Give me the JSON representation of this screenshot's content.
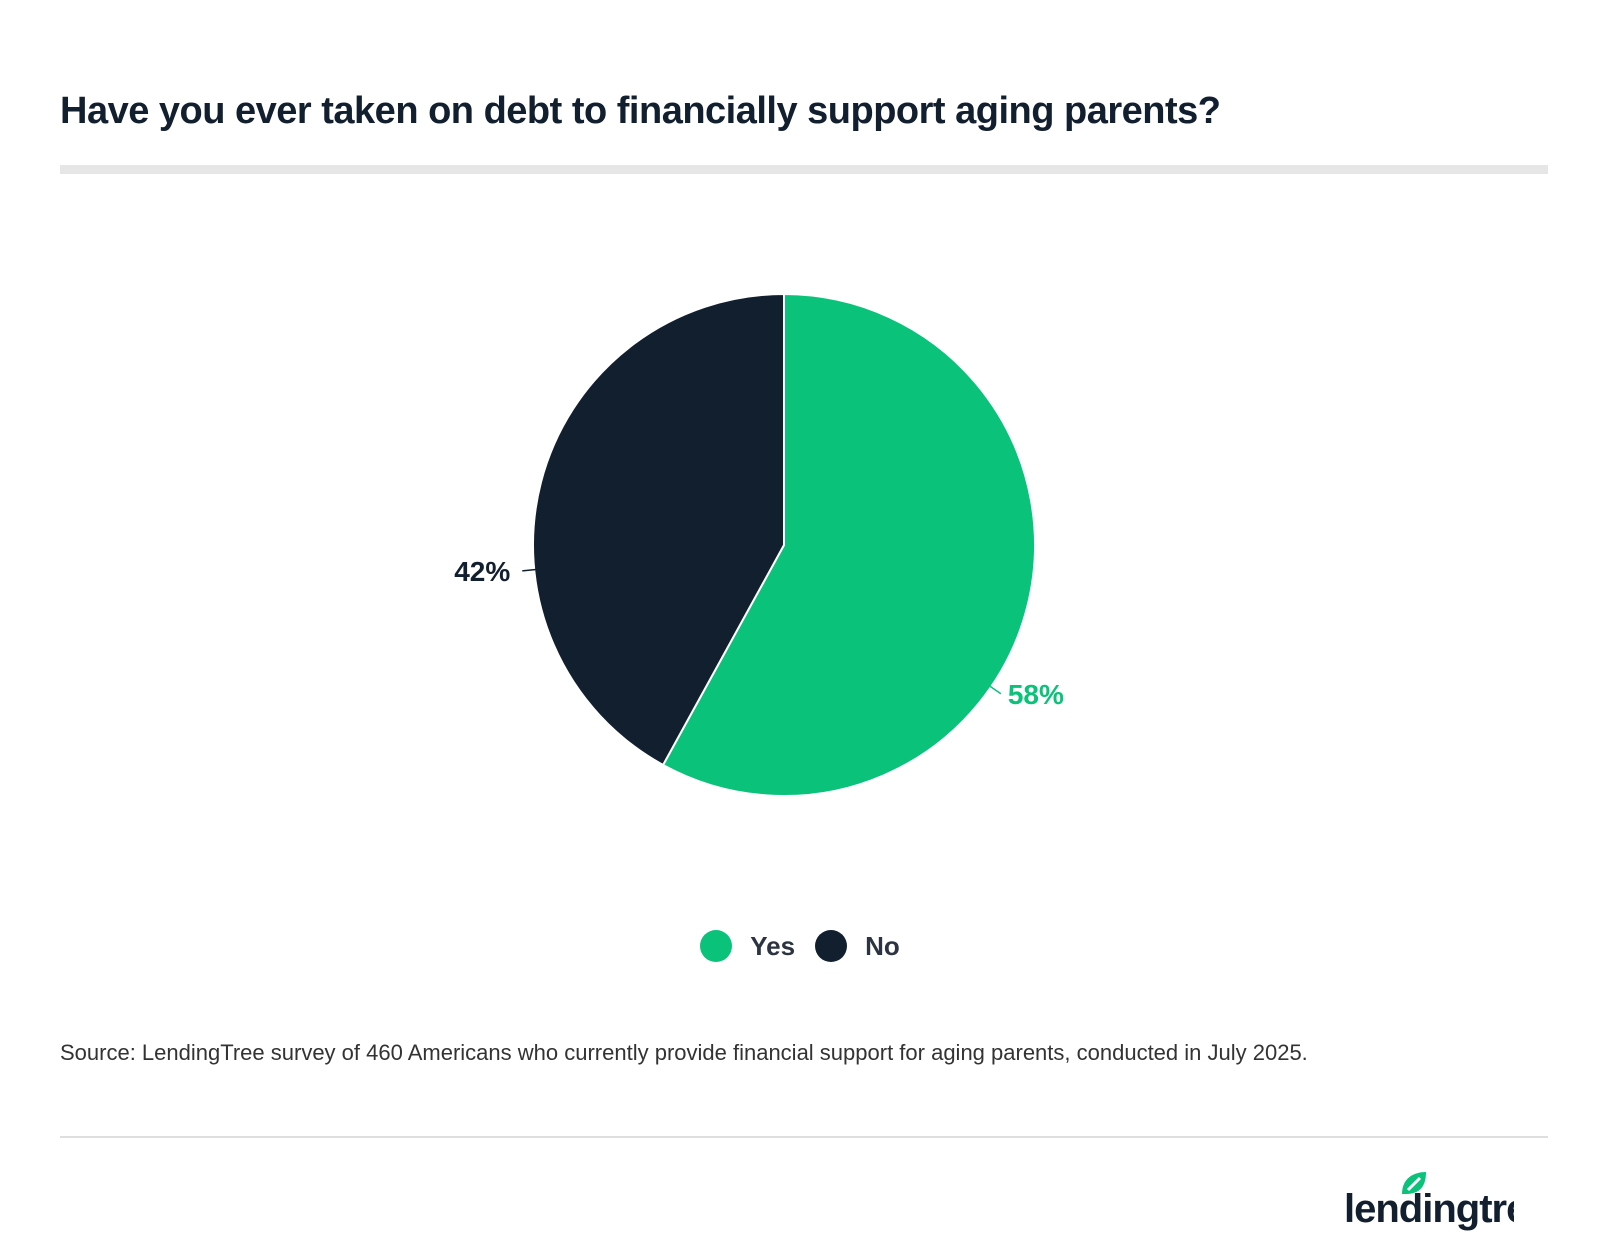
{
  "chart_data": {
    "type": "pie",
    "title": "Have you ever taken on debt to financially support aging parents?",
    "categories": [
      "Yes",
      "No"
    ],
    "values": [
      58,
      42
    ],
    "labels": [
      "58%",
      "42%"
    ],
    "colors": [
      "#0bc27a",
      "#121f2f"
    ],
    "legend": {
      "placement": "bottom",
      "entries": [
        "Yes",
        "No"
      ]
    }
  },
  "source": "Source: LendingTree survey of 460 Americans who currently provide financial support for aging parents, conducted in July 2025.",
  "logo": {
    "text": "lendingtree",
    "leaf_color": "#0bc27a"
  }
}
